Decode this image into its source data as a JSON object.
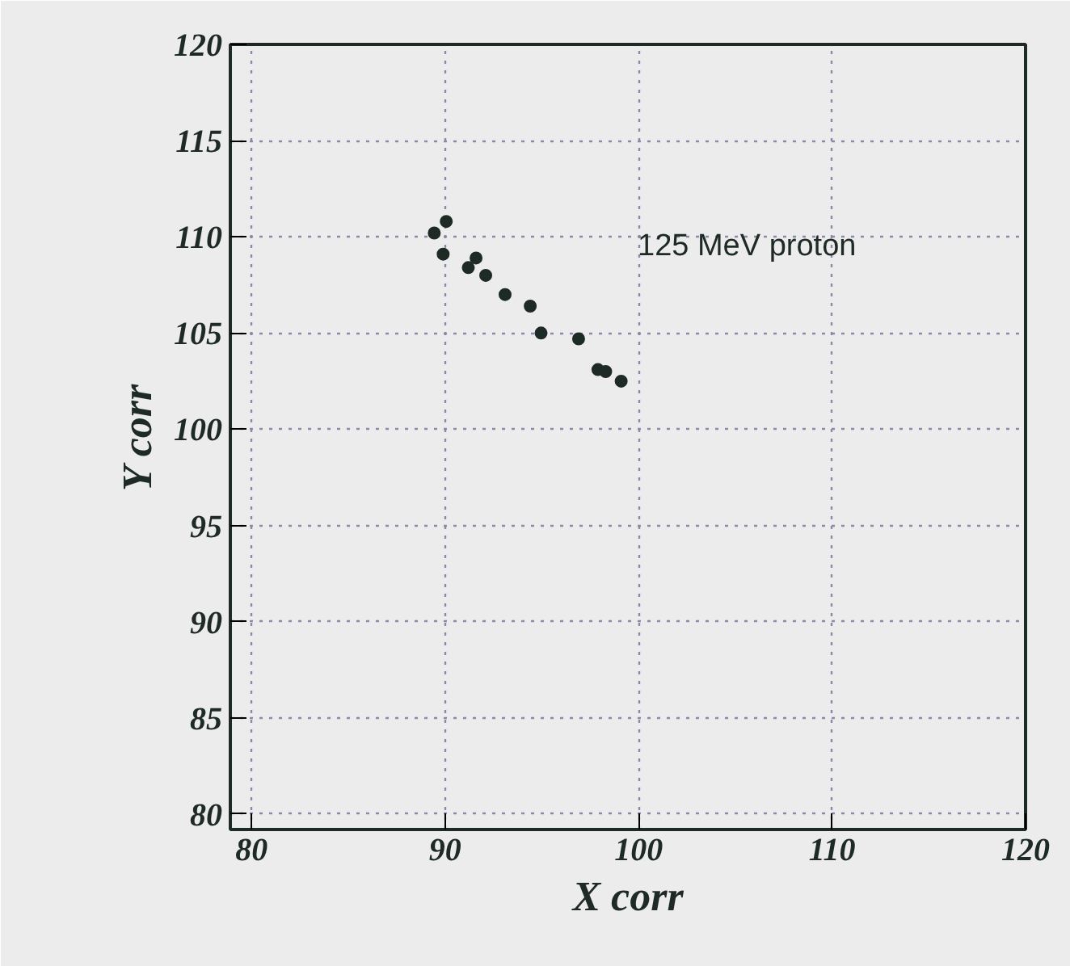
{
  "chart_data": {
    "type": "scatter",
    "xlabel": "X corr",
    "ylabel": "Y corr",
    "annotations": [
      "125 MeV proton"
    ],
    "x": [
      90.06,
      89.44,
      89.9,
      91.6,
      91.2,
      92.1,
      93.1,
      94.4,
      94.96,
      96.9,
      97.9,
      98.3,
      99.1
    ],
    "series": [
      {
        "color": "#1e2a26",
        "values": [
          110.8,
          110.2,
          109.1,
          108.9,
          108.4,
          108.0,
          107.0,
          106.4,
          105.0,
          104.7,
          103.1,
          103.0,
          102.5
        ]
      }
    ],
    "xlim": [
      78.9,
      120
    ],
    "ylim": [
      79.2,
      120
    ],
    "xticks": [
      80,
      90,
      100,
      110,
      120
    ],
    "yticks": [
      80,
      85,
      90,
      95,
      100,
      105,
      110,
      115,
      120
    ],
    "grid": true,
    "marker": "circle"
  }
}
